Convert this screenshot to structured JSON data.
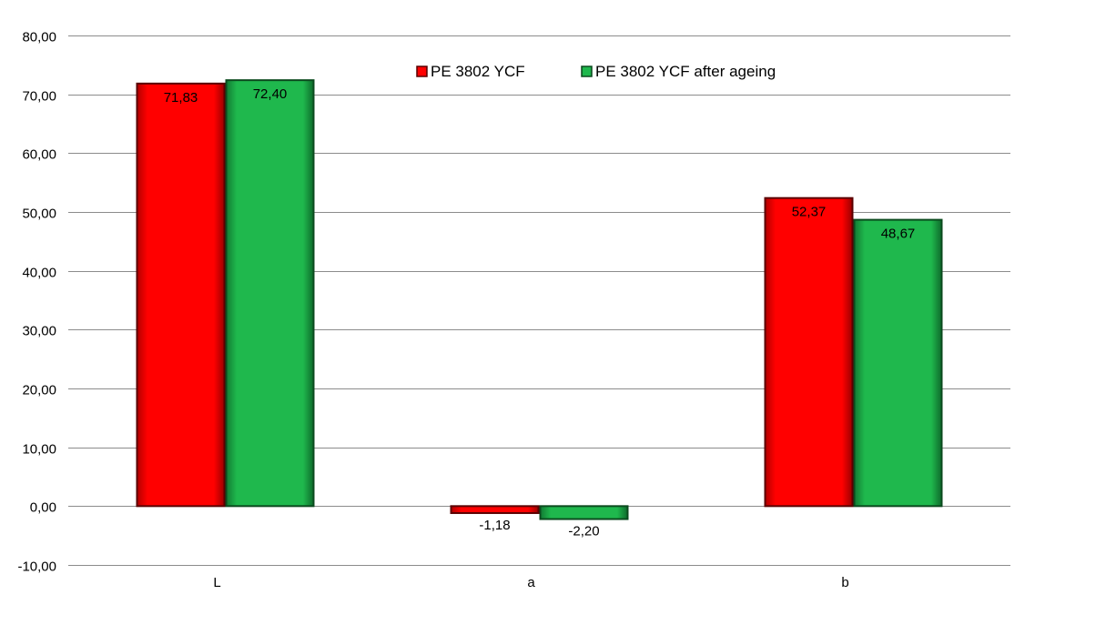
{
  "chart_data": {
    "type": "bar",
    "title": "",
    "xlabel": "",
    "ylabel": "",
    "categories": [
      "L",
      "a",
      "b"
    ],
    "series": [
      {
        "name": "PE 3802 YCF",
        "values": [
          71.83,
          -1.18,
          52.37
        ],
        "labels": [
          "71,83",
          "-1,18",
          "52,37"
        ],
        "color": "#ff0000",
        "edge": "#5a0000"
      },
      {
        "name": "PE 3802 YCF after ageing",
        "values": [
          72.4,
          -2.2,
          48.67
        ],
        "labels": [
          "72,40",
          "-2,20",
          "48,67"
        ],
        "color": "#1cb14a",
        "edge": "#0b4a1e"
      }
    ],
    "ylim": [
      -10,
      80
    ],
    "yticks": [
      80,
      70,
      60,
      50,
      40,
      30,
      20,
      10,
      0,
      -10
    ],
    "ytick_labels": [
      "80,00",
      "70,00",
      "60,00",
      "50,00",
      "40,00",
      "30,00",
      "20,00",
      "10,00",
      "0,00",
      "-10,00"
    ],
    "grid": true,
    "legend": "top-center",
    "gridline_color": "#8c8c8c"
  }
}
